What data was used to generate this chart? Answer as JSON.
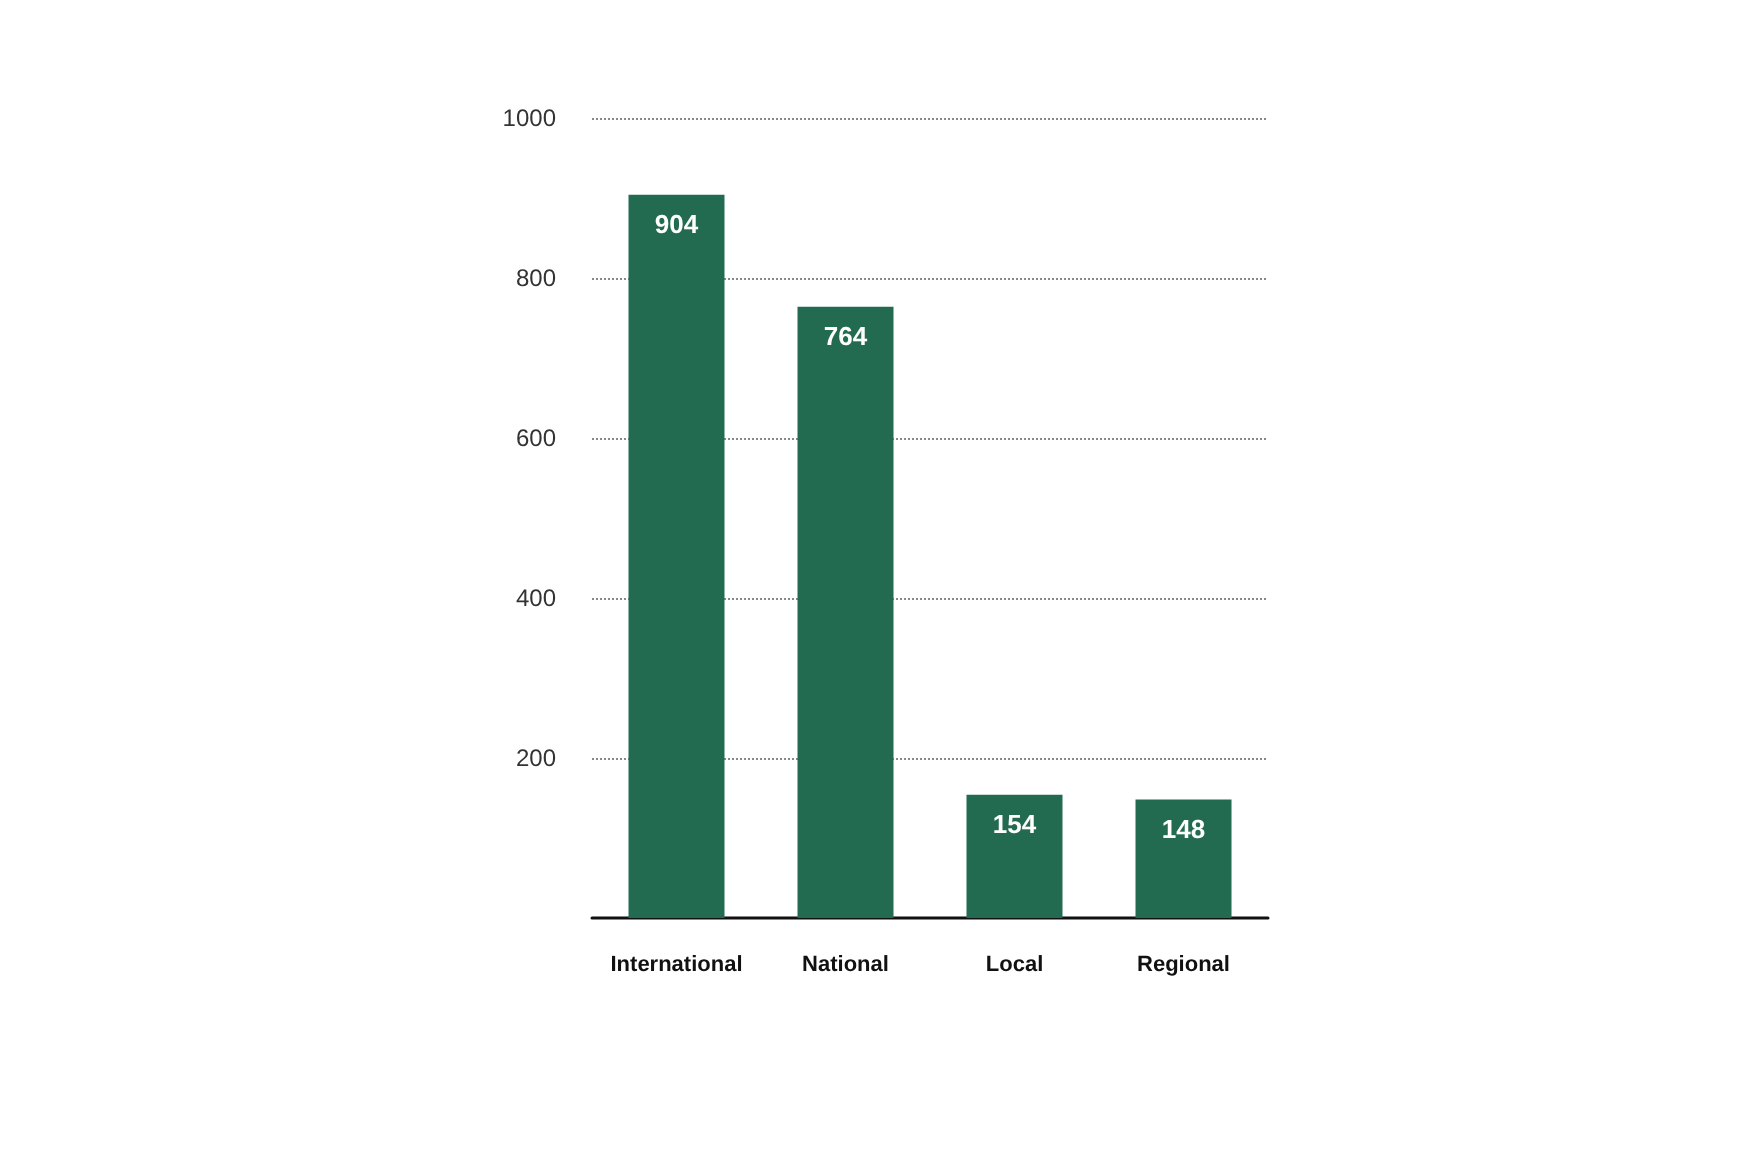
{
  "chart_data": {
    "type": "bar",
    "categories": [
      "International",
      "National",
      "Local",
      "Regional"
    ],
    "values": [
      904,
      764,
      154,
      148
    ],
    "color": "#236b50",
    "ylim": [
      0,
      1000
    ],
    "yticks": [
      200,
      400,
      600,
      800,
      1000
    ],
    "grid": "y",
    "data_labels": true
  }
}
